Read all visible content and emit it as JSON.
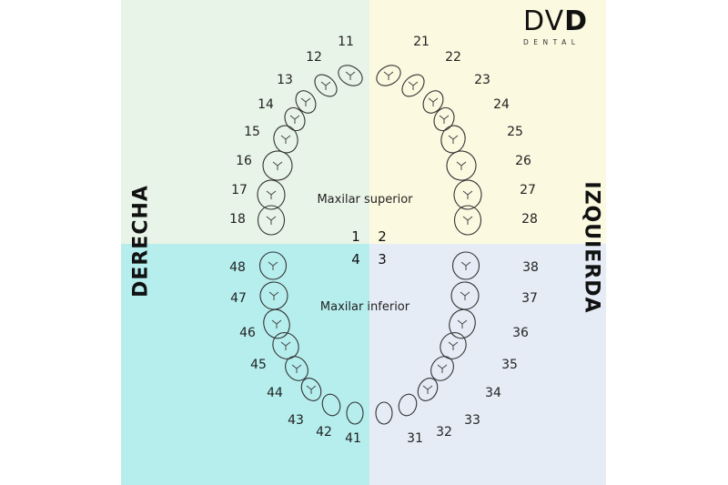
{
  "brand": {
    "logo_main_a": "DV",
    "logo_main_b": "D",
    "logo_sub": "DENTAL"
  },
  "labels": {
    "right_side": "DERECHA",
    "left_side": "IZQUIERDA",
    "upper_jaw": "Maxilar superior",
    "lower_jaw": "Maxilar inferior"
  },
  "quadrant_numbers": {
    "q1": "1",
    "q2": "2",
    "q3": "3",
    "q4": "4"
  },
  "colors": {
    "upper_right": "#e9f4e8",
    "upper_left": "#fbf9e0",
    "lower_right": "#b6eeee",
    "lower_left": "#e6ecf6"
  },
  "teeth": {
    "upper_right": [
      "11",
      "12",
      "13",
      "14",
      "15",
      "16",
      "17",
      "18"
    ],
    "upper_left": [
      "21",
      "22",
      "23",
      "24",
      "25",
      "26",
      "27",
      "28"
    ],
    "lower_left": [
      "31",
      "32",
      "33",
      "34",
      "35",
      "36",
      "37",
      "38"
    ],
    "lower_right": [
      "41",
      "42",
      "43",
      "44",
      "45",
      "46",
      "47",
      "48"
    ]
  }
}
